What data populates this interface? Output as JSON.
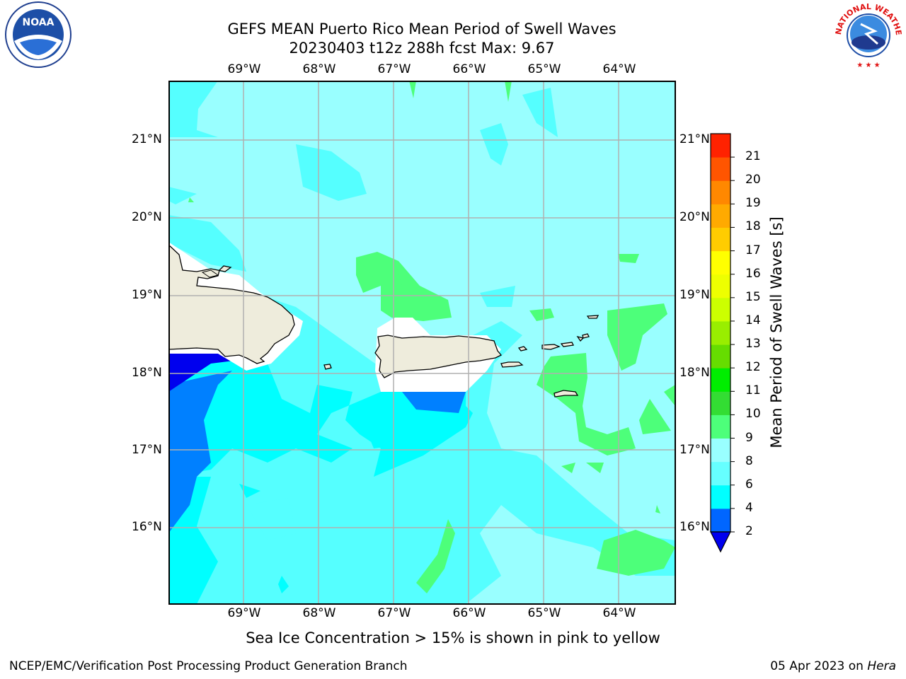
{
  "title": {
    "line1": "GEFS MEAN Puerto Rico Mean Period of Swell Waves",
    "line2": "20230403 t12z 288h fcst   Max: 9.67"
  },
  "map": {
    "lon_labels": [
      "69°W",
      "68°W",
      "67°W",
      "66°W",
      "65°W",
      "64°W"
    ],
    "lat_labels": [
      "21°N",
      "20°N",
      "19°N",
      "18°N",
      "17°N",
      "16°N"
    ],
    "lon_values": [
      -69,
      -68,
      -67,
      -66,
      -65,
      -64
    ],
    "lat_values": [
      21,
      20,
      19,
      18,
      17,
      16
    ],
    "extent": {
      "lon_min": -70,
      "lon_max": -63.25,
      "lat_min": 15,
      "lat_max": 21.75
    },
    "grid": true
  },
  "colorbar": {
    "label": "Mean Period of Swell Waves [s]",
    "levels": [
      2,
      4,
      6,
      8,
      9,
      10,
      11,
      12,
      13,
      14,
      15,
      16,
      17,
      18,
      19,
      20,
      21
    ],
    "tick_labels": [
      "2",
      "4",
      "6",
      "8",
      "9",
      "10",
      "11",
      "12",
      "13",
      "14",
      "15",
      "16",
      "17",
      "18",
      "19",
      "20",
      "21"
    ],
    "colors": [
      "#0066ff",
      "#00ffff",
      "#66ffff",
      "#99ffff",
      "#4dff7a",
      "#33dd33",
      "#00ee00",
      "#66dd00",
      "#99ee00",
      "#ccff00",
      "#eeff00",
      "#ffff00",
      "#ffcc00",
      "#ffaa00",
      "#ff8800",
      "#ff5500",
      "#ff2200"
    ],
    "extend_low_color": "#0000ee"
  },
  "legend_colors": {
    "sea_background": "#99ffff",
    "land": "#eeecdc",
    "grid": "#b0b0b0"
  },
  "note": "Sea Ice Concentration > 15% is shown in pink to yellow",
  "footer": {
    "left": "NCEP/EMC/Verification Post Processing Product Generation Branch",
    "right_prefix": "05 Apr 2023 on ",
    "right_host": "Hera"
  },
  "logos": {
    "left": "NOAA",
    "right": "NATIONAL WEATHER SERVICE"
  }
}
